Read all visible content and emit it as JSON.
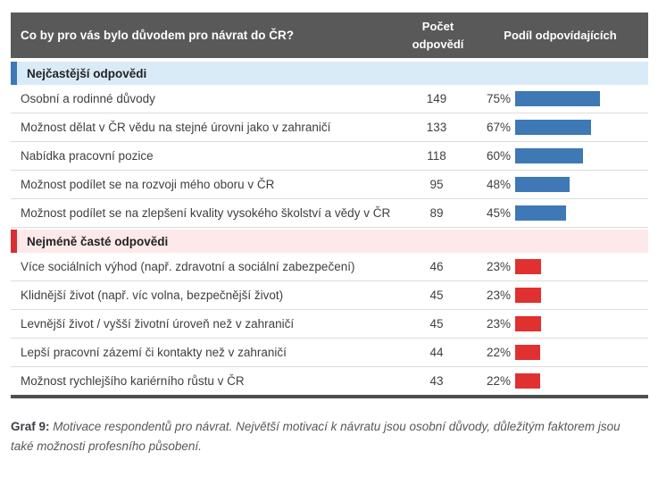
{
  "header": {
    "question": "Co by pro vás bylo důvodem pro návrat do ČR?",
    "count_col": "Počet odpovědí",
    "share_col": "Podíl odpovídajících"
  },
  "caption": {
    "prefix": "Graf 9:",
    "text": "Motivace respondentů pro návrat. Největší motivací k návratu jsou osobní důvody, důležitým faktorem jsou také možnosti profesního působení."
  },
  "colors": {
    "header_bg": "#595959",
    "blue_bar": "#3e79b5",
    "blue_section_bg": "#daebf8",
    "red_bar": "#e03130",
    "red_section_bg": "#fde9ea"
  },
  "chart_data": {
    "type": "bar",
    "orientation": "horizontal",
    "title": "Co by pro vás bylo důvodem pro návrat do ČR?",
    "value_columns": [
      "Počet odpovědí",
      "Podíl odpovídajících"
    ],
    "xlim": [
      0,
      100
    ],
    "legend_position": "none",
    "series": [
      {
        "name": "Nejčastější odpovědi",
        "color": "#3e79b5",
        "items": [
          {
            "label": "Osobní a rodinné důvody",
            "count": 149,
            "percent": 75,
            "percent_label": "75%"
          },
          {
            "label": "Možnost dělat v ČR vědu na stejné úrovni jako v zahraničí",
            "count": 133,
            "percent": 67,
            "percent_label": "67%"
          },
          {
            "label": "Nabídka pracovní pozice",
            "count": 118,
            "percent": 60,
            "percent_label": "60%"
          },
          {
            "label": "Možnost podílet se na rozvoji mého oboru v ČR",
            "count": 95,
            "percent": 48,
            "percent_label": "48%"
          },
          {
            "label": "Možnost podílet se na zlepšení kvality vysokého školství a vědy v ČR",
            "count": 89,
            "percent": 45,
            "percent_label": "45%"
          }
        ]
      },
      {
        "name": "Nejméně časté odpovědi",
        "color": "#e03130",
        "items": [
          {
            "label": "Více sociálních výhod (např. zdravotní a sociální zabezpečení)",
            "count": 46,
            "percent": 23,
            "percent_label": "23%"
          },
          {
            "label": "Klidnější život (např. víc volna, bezpečnější život)",
            "count": 45,
            "percent": 23,
            "percent_label": "23%"
          },
          {
            "label": "Levnější život / vyšší životní úroveň než v zahraničí",
            "count": 45,
            "percent": 23,
            "percent_label": "23%"
          },
          {
            "label": "Lepší pracovní zázemí či kontakty než v zahraničí",
            "count": 44,
            "percent": 22,
            "percent_label": "22%"
          },
          {
            "label": "Možnost rychlejšího kariérního růstu v ČR",
            "count": 43,
            "percent": 22,
            "percent_label": "22%"
          }
        ]
      }
    ]
  }
}
